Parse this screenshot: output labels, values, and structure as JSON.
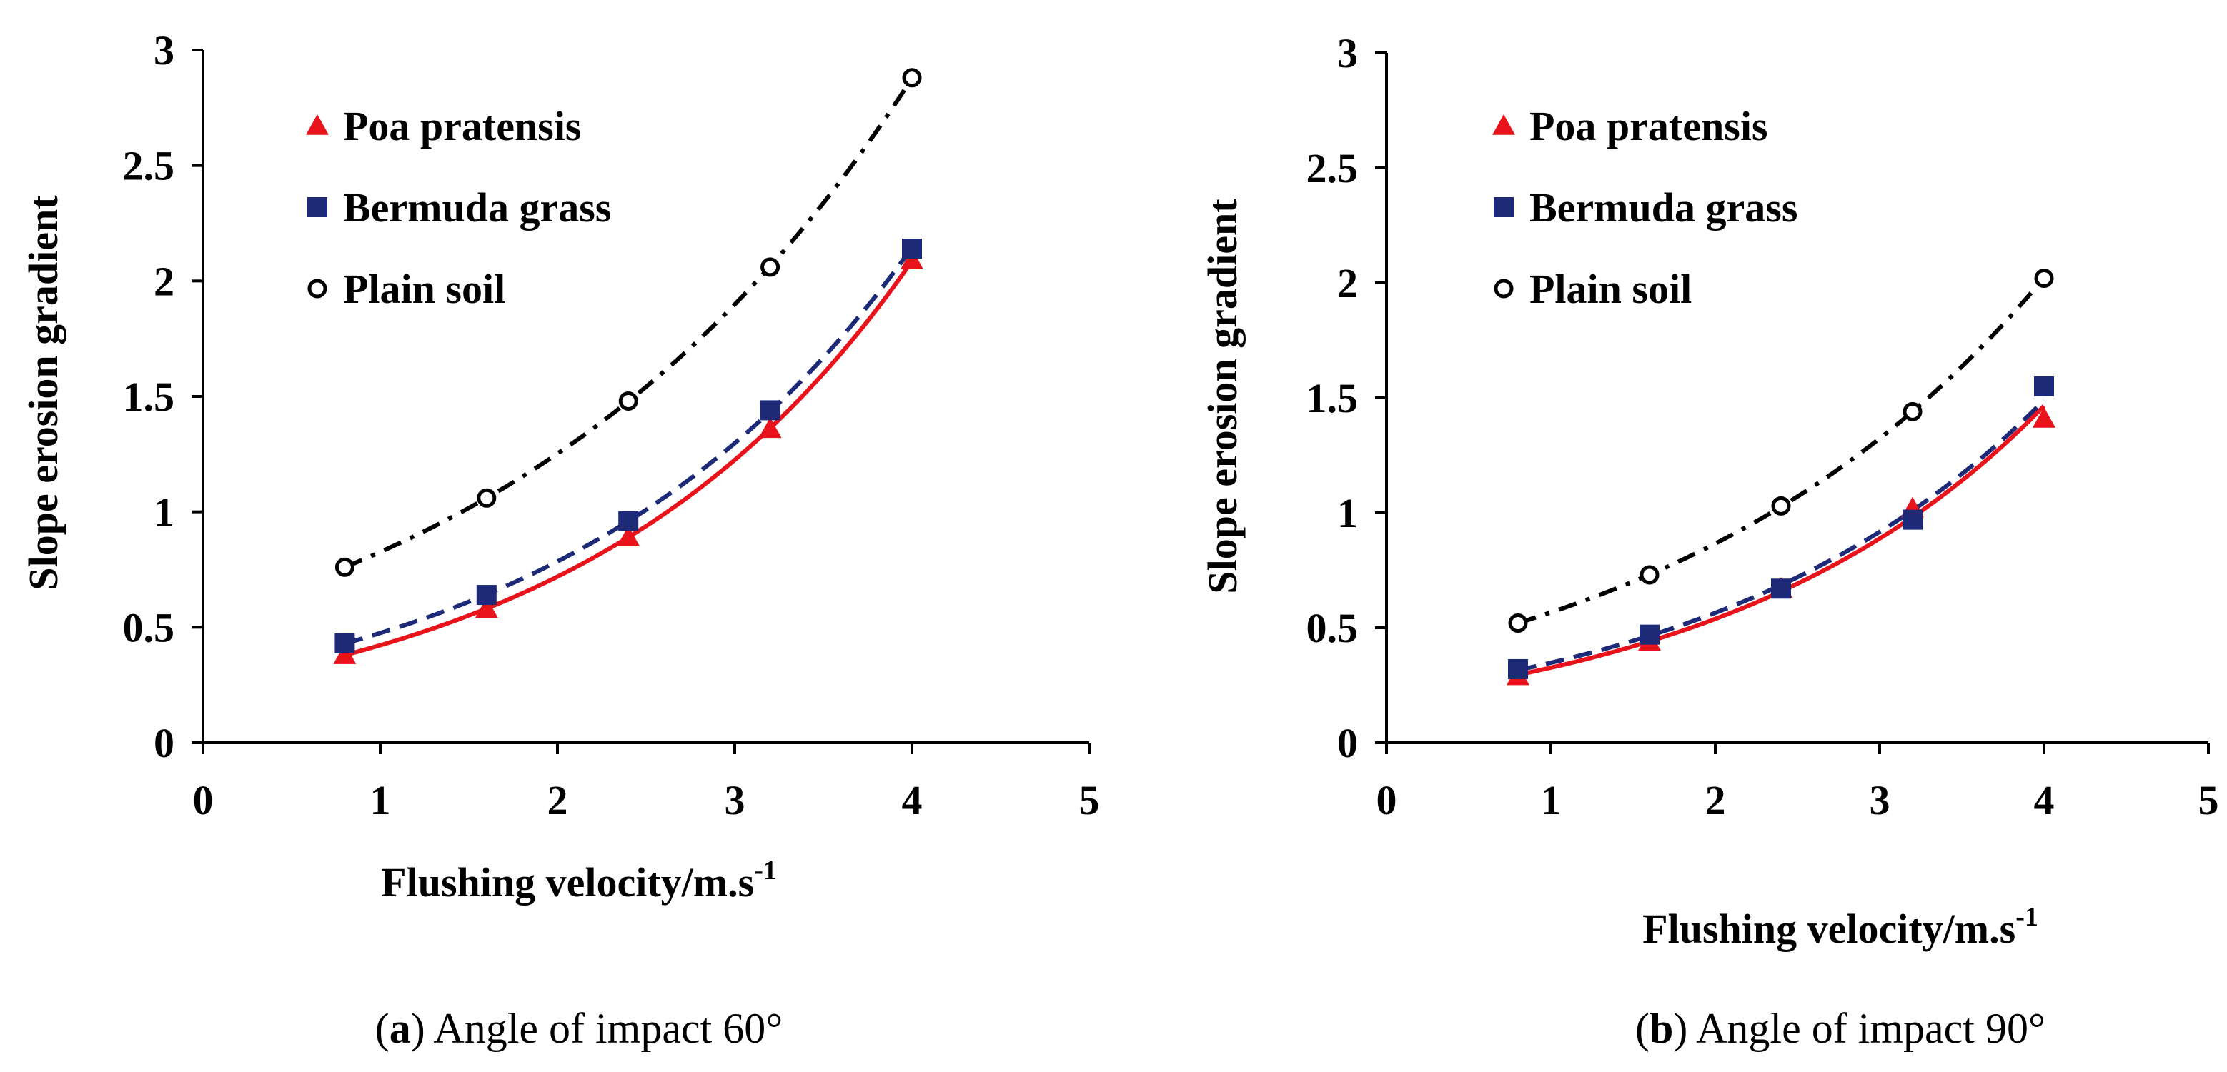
{
  "chart_data": [
    {
      "type": "scatter",
      "panel_label": "a",
      "caption": "Angle of impact 60°",
      "xlabel": "Flushing velocity/m.s",
      "xlabel_superscript": "-1",
      "ylabel": "Slope erosion gradient",
      "xlim": [
        0,
        5
      ],
      "ylim": [
        0,
        3
      ],
      "xticks": [
        "0",
        "1",
        "2",
        "3",
        "4",
        "5"
      ],
      "yticks": [
        "0",
        "0.5",
        "1",
        "1.5",
        "2",
        "2.5",
        "3"
      ],
      "legend_position": "top-left",
      "series": [
        {
          "name": "Poa pratensis",
          "marker": "triangle",
          "line_style": "solid",
          "color": "#e8131b",
          "line_color": "#e8131b",
          "x": [
            0.8,
            1.6,
            2.4,
            3.2,
            4.0
          ],
          "y": [
            0.38,
            0.58,
            0.89,
            1.36,
            2.09
          ]
        },
        {
          "name": "Bermuda grass",
          "marker": "square",
          "line_style": "dashed",
          "color": "#1c2a78",
          "line_color": "#1c2a78",
          "x": [
            0.8,
            1.6,
            2.4,
            3.2,
            4.0
          ],
          "y": [
            0.43,
            0.64,
            0.96,
            1.44,
            2.14
          ]
        },
        {
          "name": "Plain soil",
          "marker": "open-circle",
          "line_style": "dash-dot",
          "color": "#000000",
          "line_color": "#000000",
          "x": [
            0.8,
            1.6,
            2.4,
            3.2,
            4.0
          ],
          "y": [
            0.76,
            1.06,
            1.48,
            2.06,
            2.88
          ]
        }
      ]
    },
    {
      "type": "scatter",
      "panel_label": "b",
      "caption": "Angle of impact 90°",
      "xlabel": "Flushing velocity/m.s",
      "xlabel_superscript": "-1",
      "ylabel": "Slope erosion gradient",
      "xlim": [
        0,
        5
      ],
      "ylim": [
        0,
        3
      ],
      "xticks": [
        "0",
        "1",
        "2",
        "3",
        "4",
        "5"
      ],
      "yticks": [
        "0",
        "0.5",
        "1",
        "1.5",
        "2",
        "2.5",
        "3"
      ],
      "legend_position": "top-left",
      "series": [
        {
          "name": "Poa pratensis",
          "marker": "triangle",
          "line_style": "solid",
          "color": "#e8131b",
          "line_color": "#e8131b",
          "x": [
            0.8,
            1.6,
            2.4,
            3.2,
            4.0
          ],
          "y": [
            0.29,
            0.44,
            0.67,
            1.02,
            1.41
          ]
        },
        {
          "name": "Bermuda grass",
          "marker": "square",
          "line_style": "dashed",
          "color": "#1c2a78",
          "line_color": "#1c2a78",
          "x": [
            0.8,
            1.6,
            2.4,
            3.2,
            4.0
          ],
          "y": [
            0.32,
            0.47,
            0.67,
            0.97,
            1.55
          ]
        },
        {
          "name": "Plain soil",
          "marker": "open-circle",
          "line_style": "dash-dot",
          "color": "#000000",
          "line_color": "#000000",
          "x": [
            0.8,
            1.6,
            2.4,
            3.2,
            4.0
          ],
          "y": [
            0.52,
            0.73,
            1.03,
            1.44,
            2.02
          ]
        }
      ]
    }
  ]
}
